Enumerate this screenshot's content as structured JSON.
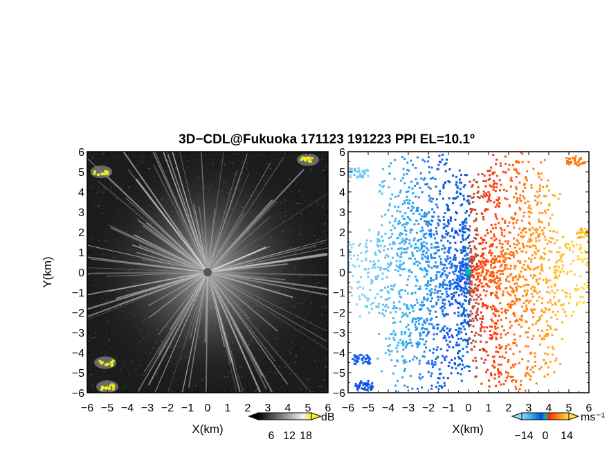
{
  "title": "3D−CDL@Fukuoka 171123 191223 PPI EL=10.1º",
  "colors": {
    "background_panel": "#1c1c1c",
    "echo_yellow": "#f2ee1a",
    "velocity_neg": "#0a47e6",
    "velocity_zero": "#00b8b8",
    "velocity_pos": "#ff3a12",
    "station": "#555555"
  },
  "chart_data": [
    {
      "type": "heatmap",
      "name": "reflectivity",
      "xlabel": "X(km)",
      "ylabel": "Y(km)",
      "xlim": [
        -6,
        6
      ],
      "ylim": [
        -6,
        6
      ],
      "x_ticks": [
        "−6",
        "−5",
        "−4",
        "−3",
        "−2",
        "−1",
        "0",
        "1",
        "2",
        "3",
        "4",
        "5",
        "6"
      ],
      "y_ticks": [
        "6",
        "5",
        "4",
        "3",
        "2",
        "1",
        "0",
        "−1",
        "−2",
        "−3",
        "−4",
        "−5",
        "−6"
      ],
      "colorbar": {
        "unit": "dB",
        "tick_labels": [
          "6",
          "12",
          "18"
        ],
        "colormap": "greyscale, high values yellow"
      },
      "station_marker": {
        "x": 0,
        "y": 0
      },
      "strong_echoes": [
        {
          "x": -5.3,
          "y": 5.0
        },
        {
          "x": 5.0,
          "y": 5.6
        },
        {
          "x": -5.1,
          "y": -4.5
        },
        {
          "x": -5.0,
          "y": -5.7
        }
      ]
    },
    {
      "type": "heatmap",
      "name": "doppler velocity",
      "xlabel": "X(km)",
      "xlim": [
        -6,
        6
      ],
      "ylim": [
        -6,
        6
      ],
      "x_ticks": [
        "−6",
        "−5",
        "−4",
        "−3",
        "−2",
        "−1",
        "0",
        "1",
        "2",
        "3",
        "4",
        "5",
        "6"
      ],
      "y_ticks": [
        "6",
        "5",
        "4",
        "3",
        "2",
        "1",
        "0",
        "−1",
        "−2",
        "−3",
        "−4",
        "−5",
        "−6"
      ],
      "colorbar": {
        "unit": "ms⁻¹",
        "tick_labels": [
          "−14",
          "0",
          "14"
        ],
        "colormap": "blue (negative) – cyan – orange – yellow (positive)"
      },
      "station_marker": {
        "x": 0,
        "y": 0
      }
    }
  ]
}
